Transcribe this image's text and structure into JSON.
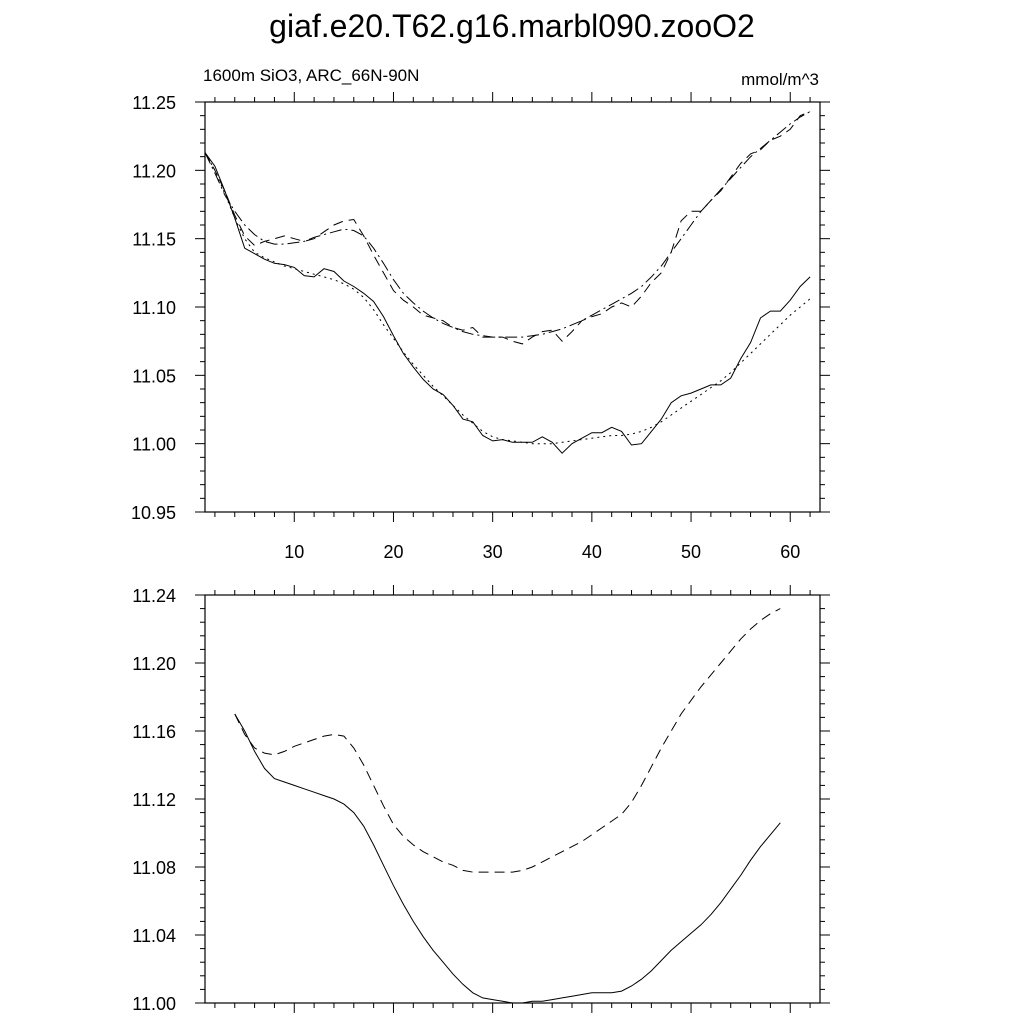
{
  "title": "giaf.e20.T62.g16.marbl090.zooO2",
  "subtitle_left": "1600m SiO3, ARC_66N-90N",
  "subtitle_right": "mmol/m^3",
  "chart_data": [
    {
      "type": "line",
      "xlim": [
        1,
        63
      ],
      "ylim": [
        10.95,
        11.25
      ],
      "x_ticks": [
        10,
        20,
        30,
        40,
        50,
        60
      ],
      "y_ticks": [
        "10.95",
        "11.00",
        "11.05",
        "11.10",
        "11.15",
        "11.20",
        "11.25"
      ],
      "grid": false,
      "series": [
        {
          "style": "solid",
          "x": [
            1,
            2,
            3,
            4,
            5,
            6,
            7,
            8,
            9,
            10,
            11,
            12,
            13,
            14,
            15,
            16,
            17,
            18,
            19,
            20,
            21,
            22,
            23,
            24,
            25,
            26,
            27,
            28,
            29,
            30,
            31,
            32,
            33,
            34,
            35,
            36,
            37,
            38,
            39,
            40,
            41,
            42,
            43,
            44,
            45,
            46,
            47,
            48,
            49,
            50,
            51,
            52,
            53,
            54,
            55,
            56,
            57,
            58,
            59,
            60,
            61,
            62
          ],
          "values": [
            11.213,
            11.203,
            11.185,
            11.165,
            11.143,
            11.139,
            11.135,
            11.132,
            11.131,
            11.129,
            11.123,
            11.122,
            11.128,
            11.126,
            11.119,
            11.115,
            11.11,
            11.104,
            11.093,
            11.079,
            11.066,
            11.056,
            11.047,
            11.04,
            11.036,
            11.028,
            11.018,
            11.016,
            11.006,
            11.002,
            11.003,
            11.001,
            11.001,
            11.001,
            11.005,
            11.001,
            10.993,
            11.0,
            11.004,
            11.008,
            11.008,
            11.012,
            11.009,
            10.999,
            11.0,
            11.009,
            11.018,
            11.03,
            11.035,
            11.037,
            11.04,
            11.043,
            11.043,
            11.048,
            11.062,
            11.074,
            11.092,
            11.097,
            11.097,
            11.105,
            11.115,
            11.122
          ]
        },
        {
          "style": "dotted",
          "x": [
            1,
            2,
            3,
            4,
            5,
            6,
            7,
            8,
            9,
            10,
            11,
            12,
            13,
            14,
            15,
            16,
            17,
            18,
            19,
            20,
            21,
            22,
            23,
            24,
            25,
            26,
            27,
            28,
            29,
            30,
            31,
            32,
            33,
            34,
            35,
            36,
            37,
            38,
            39,
            40,
            41,
            42,
            43,
            44,
            45,
            46,
            47,
            48,
            49,
            50,
            51,
            52,
            53,
            54,
            55,
            56,
            57,
            58,
            59,
            60,
            61,
            62
          ],
          "values": [
            11.213,
            11.2,
            11.183,
            11.165,
            11.15,
            11.14,
            11.136,
            11.133,
            11.13,
            11.128,
            11.126,
            11.124,
            11.122,
            11.12,
            11.117,
            11.113,
            11.107,
            11.098,
            11.087,
            11.077,
            11.067,
            11.058,
            11.05,
            11.042,
            11.035,
            11.028,
            11.021,
            11.015,
            11.009,
            11.005,
            11.003,
            11.002,
            11.001,
            11.0,
            11.0,
            11.0,
            11.001,
            11.002,
            11.003,
            11.004,
            11.005,
            11.006,
            11.006,
            11.007,
            11.009,
            11.012,
            11.016,
            11.021,
            11.026,
            11.031,
            11.036,
            11.041,
            11.046,
            11.052,
            11.059,
            11.066,
            11.073,
            11.08,
            11.087,
            11.094,
            11.1,
            11.106
          ]
        },
        {
          "style": "dashed",
          "x": [
            1,
            2,
            3,
            4,
            5,
            6,
            7,
            8,
            9,
            10,
            11,
            12,
            13,
            14,
            15,
            16,
            17,
            18,
            19,
            20,
            21,
            22,
            23,
            24,
            25,
            26,
            27,
            28,
            29,
            30,
            31,
            32,
            33,
            34,
            35,
            36,
            37,
            38,
            39,
            40,
            41,
            42,
            43,
            44,
            45,
            46,
            47,
            48,
            49,
            50,
            51,
            52,
            53,
            54,
            55,
            56,
            57,
            58,
            59,
            60,
            61,
            62
          ],
          "values": [
            11.213,
            11.2,
            11.185,
            11.167,
            11.152,
            11.145,
            11.148,
            11.15,
            11.152,
            11.15,
            11.148,
            11.15,
            11.155,
            11.16,
            11.163,
            11.164,
            11.152,
            11.138,
            11.125,
            11.112,
            11.105,
            11.1,
            11.094,
            11.092,
            11.09,
            11.085,
            11.083,
            11.085,
            11.078,
            11.078,
            11.078,
            11.075,
            11.073,
            11.078,
            11.082,
            11.083,
            11.075,
            11.082,
            11.09,
            11.093,
            11.095,
            11.1,
            11.103,
            11.1,
            11.108,
            11.118,
            11.125,
            11.14,
            11.163,
            11.17,
            11.17,
            11.178,
            11.185,
            11.195,
            11.205,
            11.212,
            11.215,
            11.222,
            11.225,
            11.23,
            11.24,
            11.243
          ]
        },
        {
          "style": "dashdot",
          "x": [
            1,
            2,
            3,
            4,
            5,
            6,
            7,
            8,
            9,
            10,
            11,
            12,
            13,
            14,
            15,
            16,
            17,
            18,
            19,
            20,
            21,
            22,
            23,
            24,
            25,
            26,
            27,
            28,
            29,
            30,
            31,
            32,
            33,
            34,
            35,
            36,
            37,
            38,
            39,
            40,
            41,
            42,
            43,
            44,
            45,
            46,
            47,
            48,
            49,
            50,
            51,
            52,
            53,
            54,
            55,
            56,
            57,
            58,
            59,
            60,
            61,
            62
          ],
          "values": [
            11.213,
            11.198,
            11.182,
            11.17,
            11.16,
            11.153,
            11.148,
            11.146,
            11.146,
            11.147,
            11.148,
            11.151,
            11.153,
            11.155,
            11.157,
            11.156,
            11.152,
            11.143,
            11.132,
            11.12,
            11.11,
            11.103,
            11.097,
            11.092,
            11.088,
            11.085,
            11.082,
            11.08,
            11.079,
            11.078,
            11.078,
            11.078,
            11.078,
            11.079,
            11.08,
            11.082,
            11.084,
            11.087,
            11.09,
            11.094,
            11.098,
            11.102,
            11.106,
            11.11,
            11.115,
            11.122,
            11.13,
            11.14,
            11.15,
            11.16,
            11.17,
            11.178,
            11.186,
            11.194,
            11.202,
            11.21,
            11.216,
            11.222,
            11.228,
            11.234,
            11.239,
            11.243
          ]
        }
      ]
    },
    {
      "type": "line",
      "xlim": [
        1,
        63
      ],
      "ylim": [
        11.0,
        11.24
      ],
      "y_ticks": [
        "11.00",
        "11.04",
        "11.08",
        "11.12",
        "11.16",
        "11.20",
        "11.24"
      ],
      "grid": false,
      "series": [
        {
          "style": "solid",
          "x": [
            4,
            5,
            6,
            7,
            8,
            9,
            10,
            11,
            12,
            13,
            14,
            15,
            16,
            17,
            18,
            19,
            20,
            21,
            22,
            23,
            24,
            25,
            26,
            27,
            28,
            29,
            30,
            31,
            32,
            33,
            34,
            35,
            36,
            37,
            38,
            39,
            40,
            41,
            42,
            43,
            44,
            45,
            46,
            47,
            48,
            49,
            50,
            51,
            52,
            53,
            54,
            55,
            56,
            57,
            58,
            59
          ],
          "values": [
            11.17,
            11.16,
            11.148,
            11.138,
            11.132,
            11.13,
            11.128,
            11.126,
            11.124,
            11.122,
            11.12,
            11.117,
            11.112,
            11.104,
            11.093,
            11.081,
            11.069,
            11.058,
            11.048,
            11.039,
            11.031,
            11.024,
            11.017,
            11.011,
            11.006,
            11.003,
            11.002,
            11.001,
            11.0,
            11.0,
            11.001,
            11.001,
            11.002,
            11.003,
            11.004,
            11.005,
            11.006,
            11.006,
            11.006,
            11.007,
            11.01,
            11.014,
            11.019,
            11.025,
            11.031,
            11.036,
            11.041,
            11.046,
            11.052,
            11.059,
            11.067,
            11.075,
            11.084,
            11.092,
            11.099,
            11.106
          ]
        },
        {
          "style": "dashed",
          "x": [
            4,
            5,
            6,
            7,
            8,
            9,
            10,
            11,
            12,
            13,
            14,
            15,
            16,
            17,
            18,
            19,
            20,
            21,
            22,
            23,
            24,
            25,
            26,
            27,
            28,
            29,
            30,
            31,
            32,
            33,
            34,
            35,
            36,
            37,
            38,
            39,
            40,
            41,
            42,
            43,
            44,
            45,
            46,
            47,
            48,
            49,
            50,
            51,
            52,
            53,
            54,
            55,
            56,
            57,
            58,
            59
          ],
          "values": [
            11.17,
            11.158,
            11.15,
            11.147,
            11.146,
            11.148,
            11.151,
            11.153,
            11.155,
            11.157,
            11.158,
            11.157,
            11.15,
            11.14,
            11.128,
            11.116,
            11.105,
            11.098,
            11.093,
            11.089,
            11.086,
            11.083,
            11.081,
            11.078,
            11.077,
            11.077,
            11.077,
            11.077,
            11.077,
            11.078,
            11.08,
            11.083,
            11.086,
            11.089,
            11.092,
            11.095,
            11.099,
            11.103,
            11.107,
            11.111,
            11.118,
            11.128,
            11.139,
            11.15,
            11.16,
            11.17,
            11.178,
            11.186,
            11.193,
            11.2,
            11.207,
            11.214,
            11.22,
            11.225,
            11.229,
            11.232
          ]
        }
      ]
    }
  ]
}
